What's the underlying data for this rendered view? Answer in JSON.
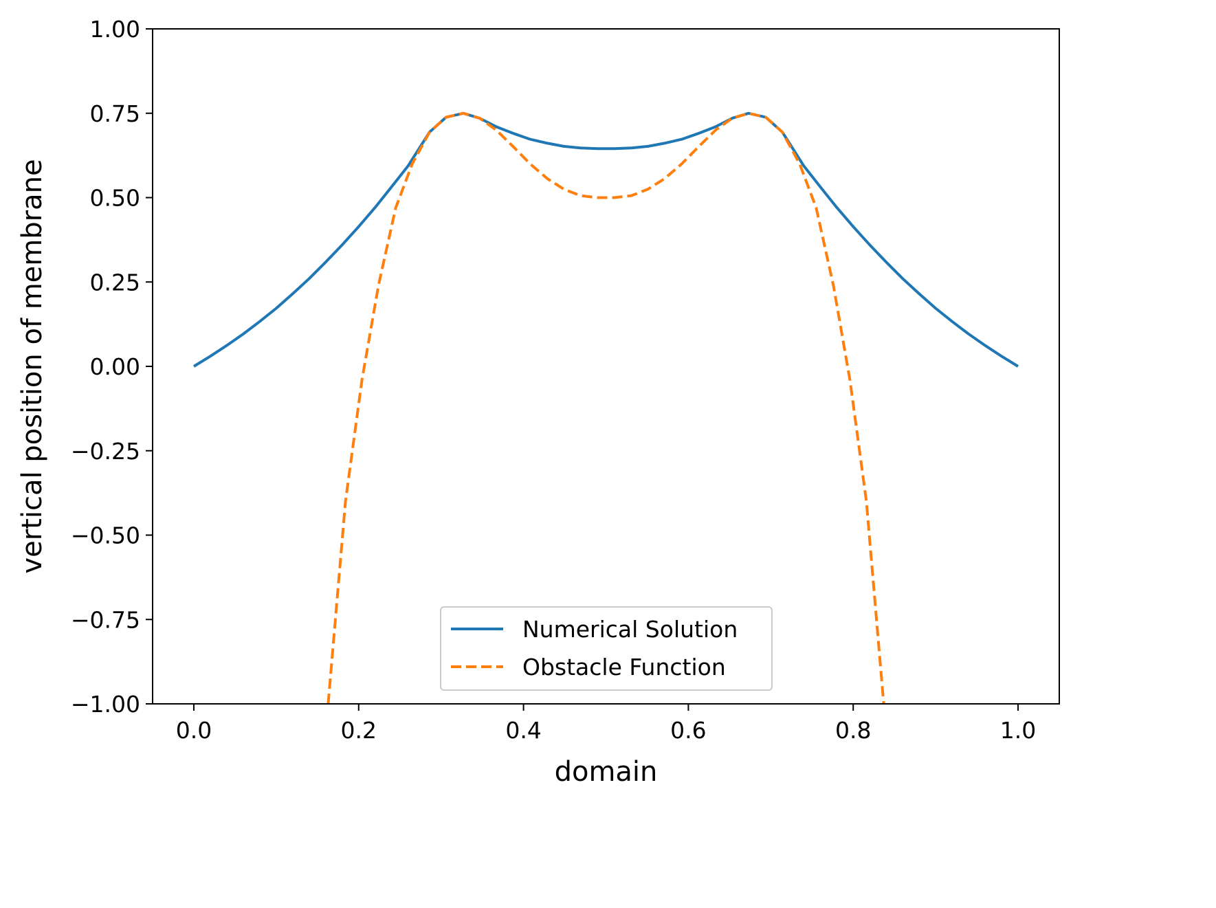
{
  "chart_data": {
    "type": "line",
    "title": "",
    "xlabel": "domain",
    "ylabel": "vertical position of membrane",
    "xlim": [
      -0.05,
      1.05
    ],
    "ylim": [
      -1.0,
      1.0
    ],
    "xticks": [
      0.0,
      0.2,
      0.4,
      0.6,
      0.8,
      1.0
    ],
    "xtick_labels": [
      "0.0",
      "0.2",
      "0.4",
      "0.6",
      "0.8",
      "1.0"
    ],
    "yticks": [
      -1.0,
      -0.75,
      -0.5,
      -0.25,
      0.0,
      0.25,
      0.5,
      0.75,
      1.0
    ],
    "ytick_labels": [
      "−1.00",
      "−0.75",
      "−0.50",
      "−0.25",
      "0.00",
      "0.25",
      "0.50",
      "0.75",
      "1.00"
    ],
    "grid": false,
    "legend_position": "lower-center",
    "series": [
      {
        "name": "Numerical Solution",
        "style": "solid",
        "color": "#1f77b4",
        "x": [
          0.0,
          0.02,
          0.04,
          0.06,
          0.08,
          0.1,
          0.12,
          0.14,
          0.16,
          0.18,
          0.2,
          0.22,
          0.24,
          0.26,
          0.286,
          0.306,
          0.327,
          0.347,
          0.367,
          0.388,
          0.408,
          0.429,
          0.449,
          0.469,
          0.49,
          0.51,
          0.531,
          0.551,
          0.571,
          0.592,
          0.612,
          0.633,
          0.653,
          0.673,
          0.694,
          0.714,
          0.74,
          0.76,
          0.78,
          0.8,
          0.82,
          0.84,
          0.86,
          0.88,
          0.9,
          0.92,
          0.94,
          0.96,
          0.98,
          1.0
        ],
        "y": [
          0.0,
          0.03,
          0.062,
          0.096,
          0.133,
          0.172,
          0.215,
          0.26,
          0.309,
          0.36,
          0.414,
          0.471,
          0.532,
          0.594,
          0.694,
          0.738,
          0.75,
          0.735,
          0.71,
          0.69,
          0.673,
          0.661,
          0.652,
          0.647,
          0.645,
          0.645,
          0.647,
          0.652,
          0.661,
          0.673,
          0.69,
          0.71,
          0.735,
          0.75,
          0.738,
          0.694,
          0.594,
          0.532,
          0.471,
          0.414,
          0.36,
          0.309,
          0.26,
          0.215,
          0.172,
          0.133,
          0.096,
          0.062,
          0.03,
          0.0
        ]
      },
      {
        "name": "Obstacle Function",
        "style": "dashed",
        "color": "#ff7f0e",
        "x": [
          0.163,
          0.184,
          0.204,
          0.224,
          0.245,
          0.265,
          0.286,
          0.306,
          0.327,
          0.347,
          0.367,
          0.388,
          0.408,
          0.429,
          0.449,
          0.469,
          0.49,
          0.5,
          0.51,
          0.531,
          0.551,
          0.571,
          0.592,
          0.612,
          0.633,
          0.653,
          0.673,
          0.694,
          0.714,
          0.735,
          0.755,
          0.776,
          0.796,
          0.816,
          0.837
        ],
        "y": [
          -1.0,
          -0.4,
          -0.04,
          0.24,
          0.47,
          0.6,
          0.694,
          0.738,
          0.75,
          0.735,
          0.7,
          0.65,
          0.6,
          0.556,
          0.525,
          0.506,
          0.5,
          0.5,
          0.5,
          0.506,
          0.525,
          0.556,
          0.6,
          0.65,
          0.7,
          0.735,
          0.75,
          0.738,
          0.694,
          0.6,
          0.47,
          0.24,
          -0.04,
          -0.4,
          -1.0
        ]
      }
    ]
  }
}
